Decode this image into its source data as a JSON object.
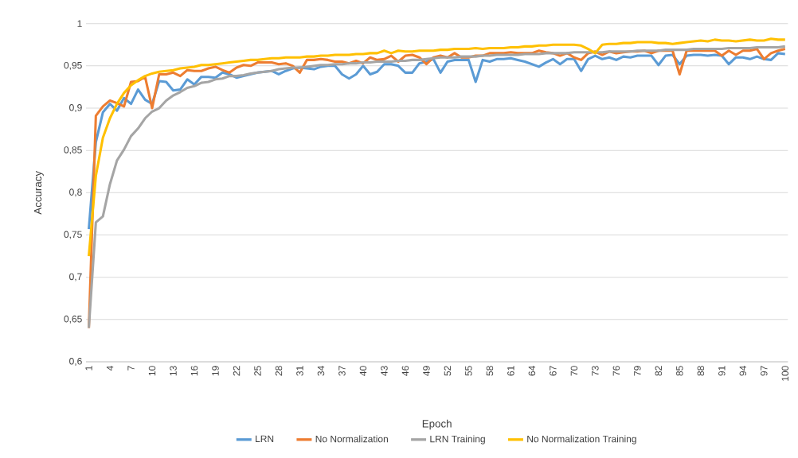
{
  "chart_data": {
    "type": "line",
    "xlabel": "Epoch",
    "ylabel": "Accuracy",
    "categories": [
      "1",
      null,
      null,
      "4",
      null,
      null,
      "7",
      null,
      null,
      "10",
      null,
      null,
      "13",
      null,
      null,
      "16",
      null,
      null,
      "19",
      null,
      null,
      "22",
      null,
      null,
      "25",
      null,
      null,
      "28",
      null,
      null,
      "31",
      null,
      null,
      "34",
      null,
      null,
      "37",
      null,
      null,
      "40",
      null,
      null,
      "43",
      null,
      null,
      "46",
      null,
      null,
      "49",
      null,
      null,
      "52",
      null,
      null,
      "55",
      null,
      null,
      "58",
      null,
      null,
      "61",
      null,
      null,
      "64",
      null,
      null,
      "67",
      null,
      null,
      "70",
      null,
      null,
      "73",
      null,
      null,
      "76",
      null,
      null,
      "79",
      null,
      null,
      "82",
      null,
      null,
      "85",
      null,
      null,
      "88",
      null,
      null,
      "91",
      null,
      null,
      "94",
      null,
      null,
      "97",
      null,
      null,
      "100"
    ],
    "series": [
      {
        "name": "LRN",
        "color": "#5b9bd5",
        "values": [
          0.757,
          0.86,
          0.895,
          0.905,
          0.897,
          0.912,
          0.905,
          0.922,
          0.91,
          0.905,
          0.932,
          0.931,
          0.921,
          0.922,
          0.934,
          0.928,
          0.937,
          0.937,
          0.936,
          0.942,
          0.94,
          0.936,
          0.938,
          0.94,
          0.942,
          0.943,
          0.944,
          0.94,
          0.944,
          0.947,
          0.948,
          0.947,
          0.946,
          0.949,
          0.95,
          0.95,
          0.94,
          0.935,
          0.94,
          0.95,
          0.94,
          0.943,
          0.952,
          0.952,
          0.95,
          0.942,
          0.942,
          0.953,
          0.955,
          0.958,
          0.942,
          0.955,
          0.957,
          0.957,
          0.957,
          0.931,
          0.957,
          0.955,
          0.958,
          0.958,
          0.959,
          0.957,
          0.955,
          0.952,
          0.949,
          0.954,
          0.958,
          0.952,
          0.958,
          0.958,
          0.944,
          0.958,
          0.962,
          0.958,
          0.96,
          0.957,
          0.961,
          0.96,
          0.962,
          0.962,
          0.962,
          0.951,
          0.962,
          0.963,
          0.952,
          0.962,
          0.963,
          0.963,
          0.962,
          0.963,
          0.962,
          0.952,
          0.96,
          0.96,
          0.958,
          0.961,
          0.958,
          0.957,
          0.965,
          0.964
        ]
      },
      {
        "name": "No Normalization",
        "color": "#ed7d31",
        "values": [
          0.64,
          0.891,
          0.902,
          0.909,
          0.906,
          0.902,
          0.931,
          0.932,
          0.937,
          0.9,
          0.94,
          0.94,
          0.942,
          0.938,
          0.945,
          0.944,
          0.944,
          0.947,
          0.949,
          0.945,
          0.942,
          0.948,
          0.951,
          0.95,
          0.954,
          0.954,
          0.954,
          0.952,
          0.953,
          0.95,
          0.942,
          0.957,
          0.957,
          0.958,
          0.957,
          0.955,
          0.955,
          0.953,
          0.956,
          0.953,
          0.96,
          0.957,
          0.958,
          0.962,
          0.955,
          0.962,
          0.963,
          0.96,
          0.952,
          0.96,
          0.962,
          0.96,
          0.965,
          0.96,
          0.96,
          0.962,
          0.962,
          0.965,
          0.965,
          0.965,
          0.966,
          0.965,
          0.965,
          0.965,
          0.968,
          0.966,
          0.965,
          0.962,
          0.965,
          0.96,
          0.957,
          0.965,
          0.967,
          0.963,
          0.967,
          0.965,
          0.966,
          0.967,
          0.967,
          0.968,
          0.965,
          0.968,
          0.968,
          0.968,
          0.94,
          0.968,
          0.968,
          0.968,
          0.968,
          0.968,
          0.962,
          0.968,
          0.963,
          0.968,
          0.968,
          0.97,
          0.958,
          0.965,
          0.968,
          0.97
        ]
      },
      {
        "name": "LRN Training",
        "color": "#a5a5a5",
        "values": [
          0.64,
          0.765,
          0.772,
          0.81,
          0.838,
          0.851,
          0.867,
          0.876,
          0.888,
          0.896,
          0.9,
          0.909,
          0.915,
          0.919,
          0.924,
          0.926,
          0.93,
          0.931,
          0.934,
          0.935,
          0.938,
          0.938,
          0.939,
          0.941,
          0.942,
          0.943,
          0.944,
          0.946,
          0.947,
          0.948,
          0.948,
          0.949,
          0.95,
          0.951,
          0.951,
          0.952,
          0.952,
          0.953,
          0.953,
          0.954,
          0.954,
          0.955,
          0.955,
          0.955,
          0.956,
          0.956,
          0.957,
          0.957,
          0.958,
          0.959,
          0.96,
          0.96,
          0.96,
          0.961,
          0.961,
          0.961,
          0.962,
          0.962,
          0.963,
          0.963,
          0.963,
          0.963,
          0.964,
          0.964,
          0.964,
          0.965,
          0.965,
          0.965,
          0.965,
          0.966,
          0.966,
          0.966,
          0.966,
          0.966,
          0.967,
          0.967,
          0.967,
          0.967,
          0.968,
          0.968,
          0.968,
          0.968,
          0.969,
          0.969,
          0.969,
          0.969,
          0.97,
          0.97,
          0.97,
          0.97,
          0.97,
          0.971,
          0.971,
          0.971,
          0.971,
          0.972,
          0.972,
          0.972,
          0.972,
          0.973
        ]
      },
      {
        "name": "No Normalization Training",
        "color": "#ffc000",
        "values": [
          0.725,
          0.82,
          0.865,
          0.888,
          0.905,
          0.918,
          0.927,
          0.933,
          0.938,
          0.941,
          0.943,
          0.944,
          0.945,
          0.947,
          0.948,
          0.949,
          0.951,
          0.951,
          0.952,
          0.953,
          0.954,
          0.955,
          0.956,
          0.957,
          0.957,
          0.958,
          0.959,
          0.959,
          0.96,
          0.96,
          0.96,
          0.961,
          0.961,
          0.962,
          0.962,
          0.963,
          0.963,
          0.963,
          0.964,
          0.964,
          0.965,
          0.965,
          0.968,
          0.965,
          0.968,
          0.967,
          0.967,
          0.968,
          0.968,
          0.968,
          0.969,
          0.969,
          0.97,
          0.97,
          0.97,
          0.971,
          0.97,
          0.971,
          0.971,
          0.971,
          0.972,
          0.972,
          0.973,
          0.973,
          0.974,
          0.974,
          0.975,
          0.975,
          0.975,
          0.975,
          0.974,
          0.97,
          0.965,
          0.975,
          0.976,
          0.976,
          0.977,
          0.977,
          0.978,
          0.978,
          0.978,
          0.977,
          0.977,
          0.976,
          0.977,
          0.978,
          0.979,
          0.98,
          0.979,
          0.981,
          0.98,
          0.98,
          0.979,
          0.98,
          0.981,
          0.98,
          0.98,
          0.982,
          0.981,
          0.981
        ]
      }
    ],
    "ylim": [
      0.6,
      1
    ],
    "yticks": [
      {
        "value": 0.6,
        "label": "0,6"
      },
      {
        "value": 0.65,
        "label": "0,65"
      },
      {
        "value": 0.7,
        "label": "0,7"
      },
      {
        "value": 0.75,
        "label": "0,75"
      },
      {
        "value": 0.8,
        "label": "0,8"
      },
      {
        "value": 0.85,
        "label": "0,85"
      },
      {
        "value": 0.9,
        "label": "0,9"
      },
      {
        "value": 0.95,
        "label": "0,95"
      },
      {
        "value": 1,
        "label": "1"
      }
    ],
    "grid": "y",
    "legend": "bottom",
    "marker": "none",
    "line_style": "solid"
  }
}
